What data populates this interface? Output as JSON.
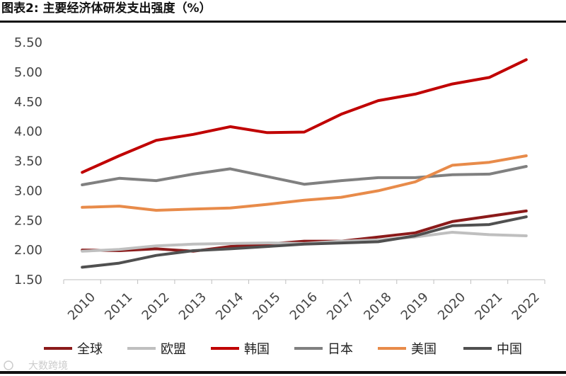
{
  "title": "图表2:  主要经济体研发支出强度（%）",
  "watermark": "大数跨境",
  "chart_data": {
    "type": "line",
    "title": "图表2:  主要经济体研发支出强度（%）",
    "xlabel": "",
    "ylabel": "",
    "ylim": [
      1.5,
      5.5
    ],
    "yticks": [
      "5.50",
      "5.00",
      "4.50",
      "4.00",
      "3.50",
      "3.00",
      "2.50",
      "2.00",
      "1.50"
    ],
    "categories": [
      "2010",
      "2011",
      "2012",
      "2013",
      "2014",
      "2015",
      "2016",
      "2017",
      "2018",
      "2019",
      "2020",
      "2021",
      "2022"
    ],
    "legend_position": "bottom",
    "series": [
      {
        "name": "全球",
        "color": "#8b1a1a",
        "values": [
          2.0,
          1.99,
          2.02,
          1.98,
          2.06,
          2.1,
          2.15,
          2.15,
          2.22,
          2.29,
          2.48,
          2.57,
          2.66
        ]
      },
      {
        "name": "欧盟",
        "color": "#bfbfbf",
        "values": [
          1.98,
          2.01,
          2.07,
          2.1,
          2.11,
          2.12,
          2.11,
          2.15,
          2.17,
          2.22,
          2.3,
          2.26,
          2.24
        ]
      },
      {
        "name": "韩国",
        "color": "#c00000",
        "values": [
          3.31,
          3.59,
          3.85,
          3.95,
          4.08,
          3.98,
          3.99,
          4.29,
          4.52,
          4.63,
          4.8,
          4.91,
          5.21
        ]
      },
      {
        "name": "日本",
        "color": "#808080",
        "values": [
          3.1,
          3.21,
          3.17,
          3.28,
          3.37,
          3.24,
          3.11,
          3.17,
          3.22,
          3.22,
          3.27,
          3.28,
          3.41
        ]
      },
      {
        "name": "美国",
        "color": "#e88b4a",
        "values": [
          2.72,
          2.74,
          2.67,
          2.69,
          2.71,
          2.77,
          2.84,
          2.89,
          3.0,
          3.15,
          3.43,
          3.48,
          3.59
        ]
      },
      {
        "name": "中国",
        "color": "#505050",
        "values": [
          1.71,
          1.78,
          1.91,
          1.99,
          2.02,
          2.06,
          2.1,
          2.12,
          2.14,
          2.24,
          2.41,
          2.43,
          2.56
        ]
      }
    ]
  }
}
